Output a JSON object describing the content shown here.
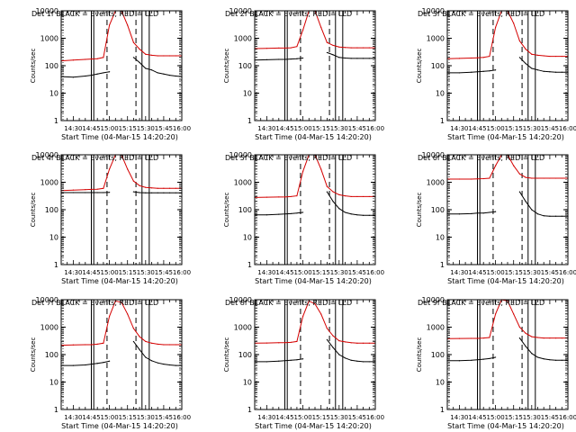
{
  "figure": {
    "start_time_label": "Start Time (04-Mar-15 14:20:20)",
    "ylabel": "Counts/sec",
    "y_tick_labels": [
      "1",
      "10",
      "100",
      "1000",
      "10000"
    ],
    "x_tick_labels": [
      "14:30",
      "14:45",
      "15:00",
      "15:15",
      "15:30",
      "15:45",
      "16:00"
    ],
    "legend_text": "BLACK = Events, RED = LLD",
    "colors": {
      "events": "#000000",
      "lld": "#d40000",
      "axes": "#000000",
      "background": "#ffffff"
    }
  },
  "chart_data": [
    {
      "type": "line",
      "title": "Det  1f BLACK = Events, RED = LLD",
      "detector": "1f",
      "xlabel": "Start Time (04-Mar-15 14:20:20)",
      "ylabel": "Counts/sec",
      "yscale": "log",
      "ylim": [
        1,
        10000
      ],
      "xlim": [
        "14:20",
        "16:00"
      ],
      "x": [
        "14:20",
        "14:30",
        "14:40",
        "14:45",
        "14:50",
        "14:55",
        "15:00",
        "15:05",
        "15:10",
        "15:15",
        "15:20",
        "15:25",
        "15:30",
        "15:35",
        "15:40",
        "15:45",
        "15:50",
        "15:55",
        "16:00"
      ],
      "series": [
        {
          "name": "Events",
          "color": "#000000",
          "values": [
            40,
            38,
            42,
            45,
            50,
            55,
            60,
            null,
            null,
            null,
            200,
            130,
            80,
            70,
            55,
            50,
            45,
            42,
            40
          ]
        },
        {
          "name": "LLD",
          "color": "#d40000",
          "values": [
            150,
            160,
            170,
            175,
            180,
            200,
            3000,
            10000,
            10000,
            3000,
            700,
            400,
            260,
            240,
            230,
            230,
            230,
            230,
            230
          ]
        }
      ],
      "vertical_lines": {
        "solid": [
          "14:45",
          "14:47",
          "15:27",
          "15:33"
        ],
        "dashed": [
          "14:58",
          "15:22"
        ],
        "dotted": [
          "14:20",
          "16:00"
        ]
      }
    },
    {
      "type": "line",
      "title": "Det  2f BLACK = Events, RED = LLD",
      "detector": "2f",
      "xlabel": "Start Time (04-Mar-15 14:20:20)",
      "ylabel": "Counts/sec",
      "yscale": "log",
      "ylim": [
        1,
        10000
      ],
      "xlim": [
        "14:20",
        "16:00"
      ],
      "x": [
        "14:20",
        "14:30",
        "14:40",
        "14:45",
        "14:50",
        "14:55",
        "15:00",
        "15:05",
        "15:10",
        "15:15",
        "15:20",
        "15:25",
        "15:30",
        "15:35",
        "15:40",
        "15:45",
        "15:50",
        "15:55",
        "16:00"
      ],
      "series": [
        {
          "name": "Events",
          "color": "#000000",
          "values": [
            160,
            165,
            170,
            170,
            175,
            180,
            190,
            null,
            null,
            null,
            300,
            250,
            200,
            190,
            185,
            185,
            185,
            185,
            185
          ]
        },
        {
          "name": "LLD",
          "color": "#d40000",
          "values": [
            420,
            430,
            440,
            440,
            450,
            500,
            2000,
            10000,
            10000,
            2500,
            700,
            550,
            480,
            460,
            450,
            450,
            450,
            450,
            450
          ]
        }
      ],
      "vertical_lines": {
        "solid": [
          "14:45",
          "14:47",
          "15:27",
          "15:33"
        ],
        "dashed": [
          "14:58",
          "15:22"
        ],
        "dotted": [
          "14:20",
          "16:00"
        ]
      }
    },
    {
      "type": "line",
      "title": "Det  3f BLACK = Events, RED = LLD",
      "detector": "3f",
      "xlabel": "Start Time (04-Mar-15 14:20:20)",
      "ylabel": "Counts/sec",
      "yscale": "log",
      "ylim": [
        1,
        10000
      ],
      "xlim": [
        "14:20",
        "16:00"
      ],
      "x": [
        "14:20",
        "14:30",
        "14:40",
        "14:45",
        "14:50",
        "14:55",
        "15:00",
        "15:05",
        "15:10",
        "15:15",
        "15:20",
        "15:25",
        "15:30",
        "15:35",
        "15:40",
        "15:45",
        "15:50",
        "15:55",
        "16:00"
      ],
      "series": [
        {
          "name": "Events",
          "color": "#000000",
          "values": [
            55,
            55,
            58,
            60,
            62,
            65,
            70,
            null,
            null,
            null,
            200,
            120,
            80,
            70,
            62,
            60,
            58,
            58,
            58
          ]
        },
        {
          "name": "LLD",
          "color": "#d40000",
          "values": [
            180,
            185,
            190,
            195,
            200,
            220,
            2500,
            10000,
            10000,
            3500,
            800,
            400,
            260,
            240,
            230,
            220,
            220,
            220,
            220
          ]
        }
      ],
      "vertical_lines": {
        "solid": [
          "14:45",
          "14:47",
          "15:27",
          "15:33"
        ],
        "dashed": [
          "14:58",
          "15:22"
        ],
        "dotted": [
          "14:20",
          "16:00"
        ]
      }
    },
    {
      "type": "line",
      "title": "Det  4f BLACK = Events, RED = LLD",
      "detector": "4f",
      "xlabel": "Start Time (04-Mar-15 14:20:20)",
      "ylabel": "Counts/sec",
      "yscale": "log",
      "ylim": [
        1,
        10000
      ],
      "xlim": [
        "14:20",
        "16:00"
      ],
      "x": [
        "14:20",
        "14:30",
        "14:40",
        "14:45",
        "14:50",
        "14:55",
        "15:00",
        "15:05",
        "15:10",
        "15:15",
        "15:20",
        "15:25",
        "15:30",
        "15:35",
        "15:40",
        "15:45",
        "15:50",
        "15:55",
        "16:00"
      ],
      "series": [
        {
          "name": "Events",
          "color": "#000000",
          "values": [
            420,
            420,
            420,
            420,
            420,
            420,
            430,
            null,
            null,
            null,
            450,
            420,
            410,
            410,
            410,
            410,
            410,
            410,
            410
          ]
        },
        {
          "name": "LLD",
          "color": "#d40000",
          "values": [
            500,
            520,
            540,
            550,
            560,
            600,
            3000,
            10000,
            10000,
            3000,
            1100,
            750,
            650,
            620,
            600,
            600,
            600,
            600,
            600
          ]
        }
      ],
      "vertical_lines": {
        "solid": [
          "14:45",
          "14:47",
          "15:27",
          "15:33"
        ],
        "dashed": [
          "14:58",
          "15:22"
        ],
        "dotted": [
          "14:20",
          "16:00"
        ]
      }
    },
    {
      "type": "line",
      "title": "Det  5f BLACK = Events, RED = LLD",
      "detector": "5f",
      "xlabel": "Start Time (04-Mar-15 14:20:20)",
      "ylabel": "Counts/sec",
      "yscale": "log",
      "ylim": [
        1,
        10000
      ],
      "xlim": [
        "14:20",
        "16:00"
      ],
      "x": [
        "14:20",
        "14:30",
        "14:40",
        "14:45",
        "14:50",
        "14:55",
        "15:00",
        "15:05",
        "15:10",
        "15:15",
        "15:20",
        "15:25",
        "15:30",
        "15:35",
        "15:40",
        "15:45",
        "15:50",
        "15:55",
        "16:00"
      ],
      "series": [
        {
          "name": "Events",
          "color": "#000000",
          "values": [
            65,
            65,
            68,
            70,
            72,
            75,
            80,
            null,
            null,
            null,
            450,
            200,
            110,
            80,
            70,
            65,
            62,
            62,
            62
          ]
        },
        {
          "name": "LLD",
          "color": "#d40000",
          "values": [
            280,
            285,
            290,
            290,
            300,
            320,
            2500,
            10000,
            10000,
            3000,
            700,
            450,
            350,
            320,
            300,
            300,
            300,
            300,
            300
          ]
        }
      ],
      "vertical_lines": {
        "solid": [
          "14:45",
          "14:47",
          "15:27",
          "15:33"
        ],
        "dashed": [
          "14:58",
          "15:22"
        ],
        "dotted": [
          "14:20",
          "16:00"
        ]
      }
    },
    {
      "type": "line",
      "title": "Det  6f BLACK = Events, RED = LLD",
      "detector": "6f",
      "xlabel": "Start Time (04-Mar-15 14:20:20)",
      "ylabel": "Counts/sec",
      "yscale": "log",
      "ylim": [
        1,
        10000
      ],
      "xlim": [
        "14:20",
        "16:00"
      ],
      "x": [
        "14:20",
        "14:30",
        "14:40",
        "14:45",
        "14:50",
        "14:55",
        "15:00",
        "15:05",
        "15:10",
        "15:15",
        "15:20",
        "15:25",
        "15:30",
        "15:35",
        "15:40",
        "15:45",
        "15:50",
        "15:55",
        "16:00"
      ],
      "series": [
        {
          "name": "Events",
          "color": "#000000",
          "values": [
            70,
            70,
            72,
            75,
            75,
            80,
            85,
            null,
            null,
            null,
            450,
            200,
            100,
            70,
            60,
            58,
            58,
            58,
            58
          ]
        },
        {
          "name": "LLD",
          "color": "#d40000",
          "values": [
            1300,
            1300,
            1300,
            1320,
            1350,
            1400,
            4000,
            10000,
            10000,
            4000,
            2000,
            1500,
            1400,
            1400,
            1400,
            1400,
            1400,
            1400,
            1400
          ]
        }
      ],
      "vertical_lines": {
        "solid": [
          "14:45",
          "14:47",
          "15:27",
          "15:33"
        ],
        "dashed": [
          "14:58",
          "15:22"
        ],
        "dotted": [
          "14:20",
          "16:00"
        ]
      }
    },
    {
      "type": "line",
      "title": "Det  7f BLACK = Events, RED = LLD",
      "detector": "7f",
      "xlabel": "Start Time (04-Mar-15 14:20:20)",
      "ylabel": "Counts/sec",
      "yscale": "log",
      "ylim": [
        1,
        10000
      ],
      "xlim": [
        "14:20",
        "16:00"
      ],
      "x": [
        "14:20",
        "14:30",
        "14:40",
        "14:45",
        "14:50",
        "14:55",
        "15:00",
        "15:05",
        "15:10",
        "15:15",
        "15:20",
        "15:25",
        "15:30",
        "15:35",
        "15:40",
        "15:45",
        "15:50",
        "15:55",
        "16:00"
      ],
      "series": [
        {
          "name": "Events",
          "color": "#000000",
          "values": [
            40,
            40,
            42,
            45,
            48,
            52,
            58,
            null,
            null,
            null,
            300,
            150,
            80,
            60,
            50,
            45,
            42,
            40,
            40
          ]
        },
        {
          "name": "LLD",
          "color": "#d40000",
          "values": [
            220,
            225,
            230,
            230,
            240,
            260,
            2500,
            9000,
            8000,
            3000,
            900,
            450,
            300,
            260,
            240,
            230,
            230,
            230,
            230
          ]
        }
      ],
      "vertical_lines": {
        "solid": [
          "14:45",
          "14:47",
          "15:27",
          "15:33"
        ],
        "dashed": [
          "14:58",
          "15:22"
        ],
        "dotted": [
          "14:20",
          "16:00"
        ]
      }
    },
    {
      "type": "line",
      "title": "Det  8f BLACK = Events, RED = LLD",
      "detector": "8f",
      "xlabel": "Start Time (04-Mar-15 14:20:20)",
      "ylabel": "Counts/sec",
      "yscale": "log",
      "ylim": [
        1,
        10000
      ],
      "xlim": [
        "14:20",
        "16:00"
      ],
      "x": [
        "14:20",
        "14:30",
        "14:40",
        "14:45",
        "14:50",
        "14:55",
        "15:00",
        "15:05",
        "15:10",
        "15:15",
        "15:20",
        "15:25",
        "15:30",
        "15:35",
        "15:40",
        "15:45",
        "15:50",
        "15:55",
        "16:00"
      ],
      "series": [
        {
          "name": "Events",
          "color": "#000000",
          "values": [
            55,
            55,
            58,
            60,
            62,
            65,
            70,
            null,
            null,
            null,
            350,
            180,
            100,
            75,
            62,
            58,
            55,
            55,
            55
          ]
        },
        {
          "name": "LLD",
          "color": "#d40000",
          "values": [
            260,
            265,
            270,
            270,
            280,
            300,
            2500,
            9000,
            7000,
            3000,
            900,
            480,
            320,
            290,
            270,
            260,
            260,
            260,
            260
          ]
        }
      ],
      "vertical_lines": {
        "solid": [
          "14:45",
          "14:47",
          "15:27",
          "15:33"
        ],
        "dashed": [
          "14:58",
          "15:22"
        ],
        "dotted": [
          "14:20",
          "16:00"
        ]
      }
    },
    {
      "type": "line",
      "title": "Det  9f BLACK = Events, RED = LLD",
      "detector": "9f",
      "xlabel": "Start Time (04-Mar-15 14:20:20)",
      "ylabel": "Counts/sec",
      "yscale": "log",
      "ylim": [
        1,
        10000
      ],
      "xlim": [
        "14:20",
        "16:00"
      ],
      "x": [
        "14:20",
        "14:30",
        "14:40",
        "14:45",
        "14:50",
        "14:55",
        "15:00",
        "15:05",
        "15:10",
        "15:15",
        "15:20",
        "15:25",
        "15:30",
        "15:35",
        "15:40",
        "15:45",
        "15:50",
        "15:55",
        "16:00"
      ],
      "series": [
        {
          "name": "Events",
          "color": "#000000",
          "values": [
            60,
            60,
            62,
            65,
            68,
            72,
            80,
            null,
            null,
            null,
            400,
            200,
            110,
            80,
            70,
            65,
            62,
            62,
            62
          ]
        },
        {
          "name": "LLD",
          "color": "#d40000",
          "values": [
            380,
            385,
            390,
            390,
            400,
            420,
            3000,
            10000,
            9000,
            3000,
            1000,
            600,
            450,
            420,
            400,
            400,
            400,
            400,
            400
          ]
        }
      ],
      "vertical_lines": {
        "solid": [
          "14:45",
          "14:47",
          "15:27",
          "15:33"
        ],
        "dashed": [
          "14:58",
          "15:22"
        ],
        "dotted": [
          "14:20",
          "16:00"
        ]
      }
    }
  ]
}
